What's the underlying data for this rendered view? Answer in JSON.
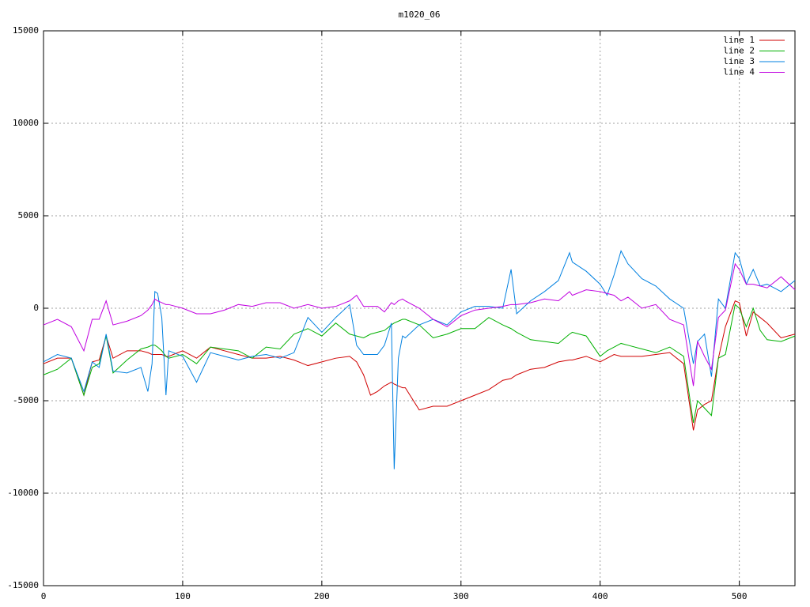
{
  "chart_data": {
    "type": "line",
    "title": "m1020_06",
    "x": [
      0,
      10,
      20,
      29,
      35,
      40,
      45,
      50,
      60,
      70,
      75,
      78,
      80,
      82,
      85,
      88,
      90,
      100,
      110,
      120,
      130,
      140,
      150,
      160,
      170,
      180,
      190,
      200,
      210,
      220,
      225,
      230,
      235,
      240,
      245,
      250,
      252,
      255,
      258,
      260,
      270,
      280,
      290,
      300,
      310,
      320,
      330,
      336,
      340,
      350,
      360,
      370,
      378,
      380,
      390,
      400,
      405,
      410,
      415,
      420,
      430,
      440,
      450,
      460,
      467,
      470,
      475,
      480,
      485,
      490,
      497,
      500,
      505,
      510,
      515,
      520,
      530,
      540
    ],
    "series": [
      {
        "name": "line 1",
        "color": "#d00000",
        "values": [
          -3000,
          -2700,
          -2700,
          -4700,
          -2900,
          -2800,
          -1500,
          -2700,
          -2300,
          -2300,
          -2400,
          -2500,
          -2500,
          -2500,
          -2500,
          -2600,
          -2600,
          -2300,
          -2700,
          -2100,
          -2300,
          -2500,
          -2700,
          -2700,
          -2600,
          -2800,
          -3100,
          -2900,
          -2700,
          -2600,
          -2900,
          -3600,
          -4700,
          -4500,
          -4200,
          -4000,
          -4100,
          -4200,
          -4300,
          -4300,
          -5500,
          -5300,
          -5300,
          -5000,
          -4700,
          -4400,
          -3900,
          -3800,
          -3600,
          -3300,
          -3200,
          -2900,
          -2800,
          -2800,
          -2600,
          -2900,
          -2700,
          -2500,
          -2600,
          -2600,
          -2600,
          -2500,
          -2400,
          -3000,
          -6600,
          -5500,
          -5200,
          -5000,
          -2700,
          -1000,
          400,
          300,
          -1500,
          -200,
          -500,
          -800,
          -1600,
          -1400
        ]
      },
      {
        "name": "line 2",
        "color": "#00b000",
        "values": [
          -3600,
          -3300,
          -2700,
          -4700,
          -3200,
          -3000,
          -1500,
          -3500,
          -2800,
          -2200,
          -2100,
          -2000,
          -2000,
          -2100,
          -2300,
          -2600,
          -2700,
          -2500,
          -3000,
          -2100,
          -2200,
          -2300,
          -2700,
          -2100,
          -2200,
          -1400,
          -1100,
          -1500,
          -800,
          -1400,
          -1500,
          -1600,
          -1400,
          -1300,
          -1200,
          -900,
          -800,
          -700,
          -600,
          -600,
          -900,
          -1600,
          -1400,
          -1100,
          -1100,
          -500,
          -900,
          -1100,
          -1300,
          -1700,
          -1800,
          -1900,
          -1400,
          -1300,
          -1500,
          -2600,
          -2300,
          -2100,
          -1900,
          -2000,
          -2200,
          -2400,
          -2100,
          -2600,
          -6200,
          -5000,
          -5400,
          -5800,
          -2700,
          -2500,
          200,
          0,
          -1000,
          0,
          -1200,
          -1700,
          -1800,
          -1500
        ]
      },
      {
        "name": "line 3",
        "color": "#0080e0",
        "values": [
          -2900,
          -2500,
          -2700,
          -4500,
          -2900,
          -3200,
          -1400,
          -3400,
          -3500,
          -3200,
          -4500,
          -3000,
          900,
          800,
          -500,
          -4700,
          -2300,
          -2600,
          -4000,
          -2400,
          -2600,
          -2800,
          -2600,
          -2500,
          -2700,
          -2400,
          -500,
          -1300,
          -500,
          200,
          -2000,
          -2500,
          -2500,
          -2500,
          -2000,
          -800,
          -8700,
          -2700,
          -1500,
          -1600,
          -900,
          -600,
          -900,
          -200,
          100,
          100,
          0,
          2100,
          -300,
          400,
          900,
          1500,
          3000,
          2500,
          2000,
          1300,
          700,
          1800,
          3100,
          2400,
          1600,
          1200,
          500,
          0,
          -3000,
          -1800,
          -1400,
          -3700,
          500,
          0,
          3000,
          2700,
          1300,
          2100,
          1200,
          1300,
          900,
          1500
        ]
      },
      {
        "name": "line 4",
        "color": "#c000e0",
        "values": [
          -900,
          -600,
          -1000,
          -2300,
          -600,
          -600,
          400,
          -900,
          -700,
          -400,
          -100,
          200,
          500,
          400,
          300,
          200,
          200,
          0,
          -300,
          -300,
          -100,
          200,
          100,
          300,
          300,
          0,
          200,
          0,
          100,
          400,
          700,
          100,
          100,
          100,
          -200,
          300,
          200,
          400,
          500,
          400,
          0,
          -600,
          -1000,
          -400,
          -100,
          0,
          100,
          200,
          200,
          300,
          500,
          400,
          900,
          700,
          1000,
          900,
          800,
          700,
          400,
          600,
          0,
          200,
          -600,
          -900,
          -4200,
          -1800,
          -2600,
          -3300,
          -500,
          -100,
          2400,
          2100,
          1300,
          1300,
          1200,
          1100,
          1700,
          1000
        ]
      }
    ],
    "xlim": [
      0,
      540
    ],
    "xticks": [
      0,
      100,
      200,
      300,
      400,
      500
    ],
    "ylim": [
      -15000,
      15000
    ],
    "yticks": [
      -15000,
      -10000,
      -5000,
      0,
      5000,
      10000,
      15000
    ],
    "grid": true,
    "legend": "top-right"
  }
}
